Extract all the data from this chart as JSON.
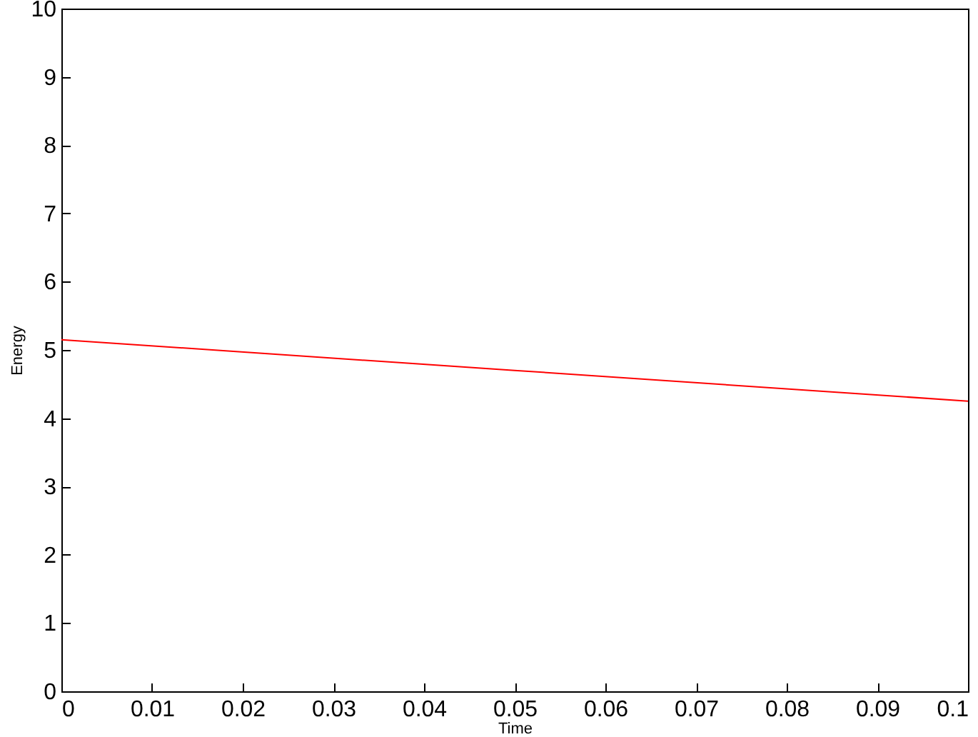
{
  "chart_data": {
    "type": "line",
    "xlabel": "Time",
    "ylabel": "Energy",
    "x": [
      0,
      0.05,
      0.1
    ],
    "series": [
      {
        "color": "#ff0000",
        "values": [
          5.15,
          4.7,
          4.25
        ]
      }
    ],
    "xlim": [
      0,
      0.1
    ],
    "ylim": [
      0,
      10
    ],
    "xticks": [
      0,
      0.01,
      0.02,
      0.03,
      0.04,
      0.05,
      0.06,
      0.07,
      0.08,
      0.09,
      0.1
    ],
    "yticks": [
      0,
      1,
      2,
      3,
      4,
      5,
      6,
      7,
      8,
      9,
      10
    ],
    "grid": false
  }
}
